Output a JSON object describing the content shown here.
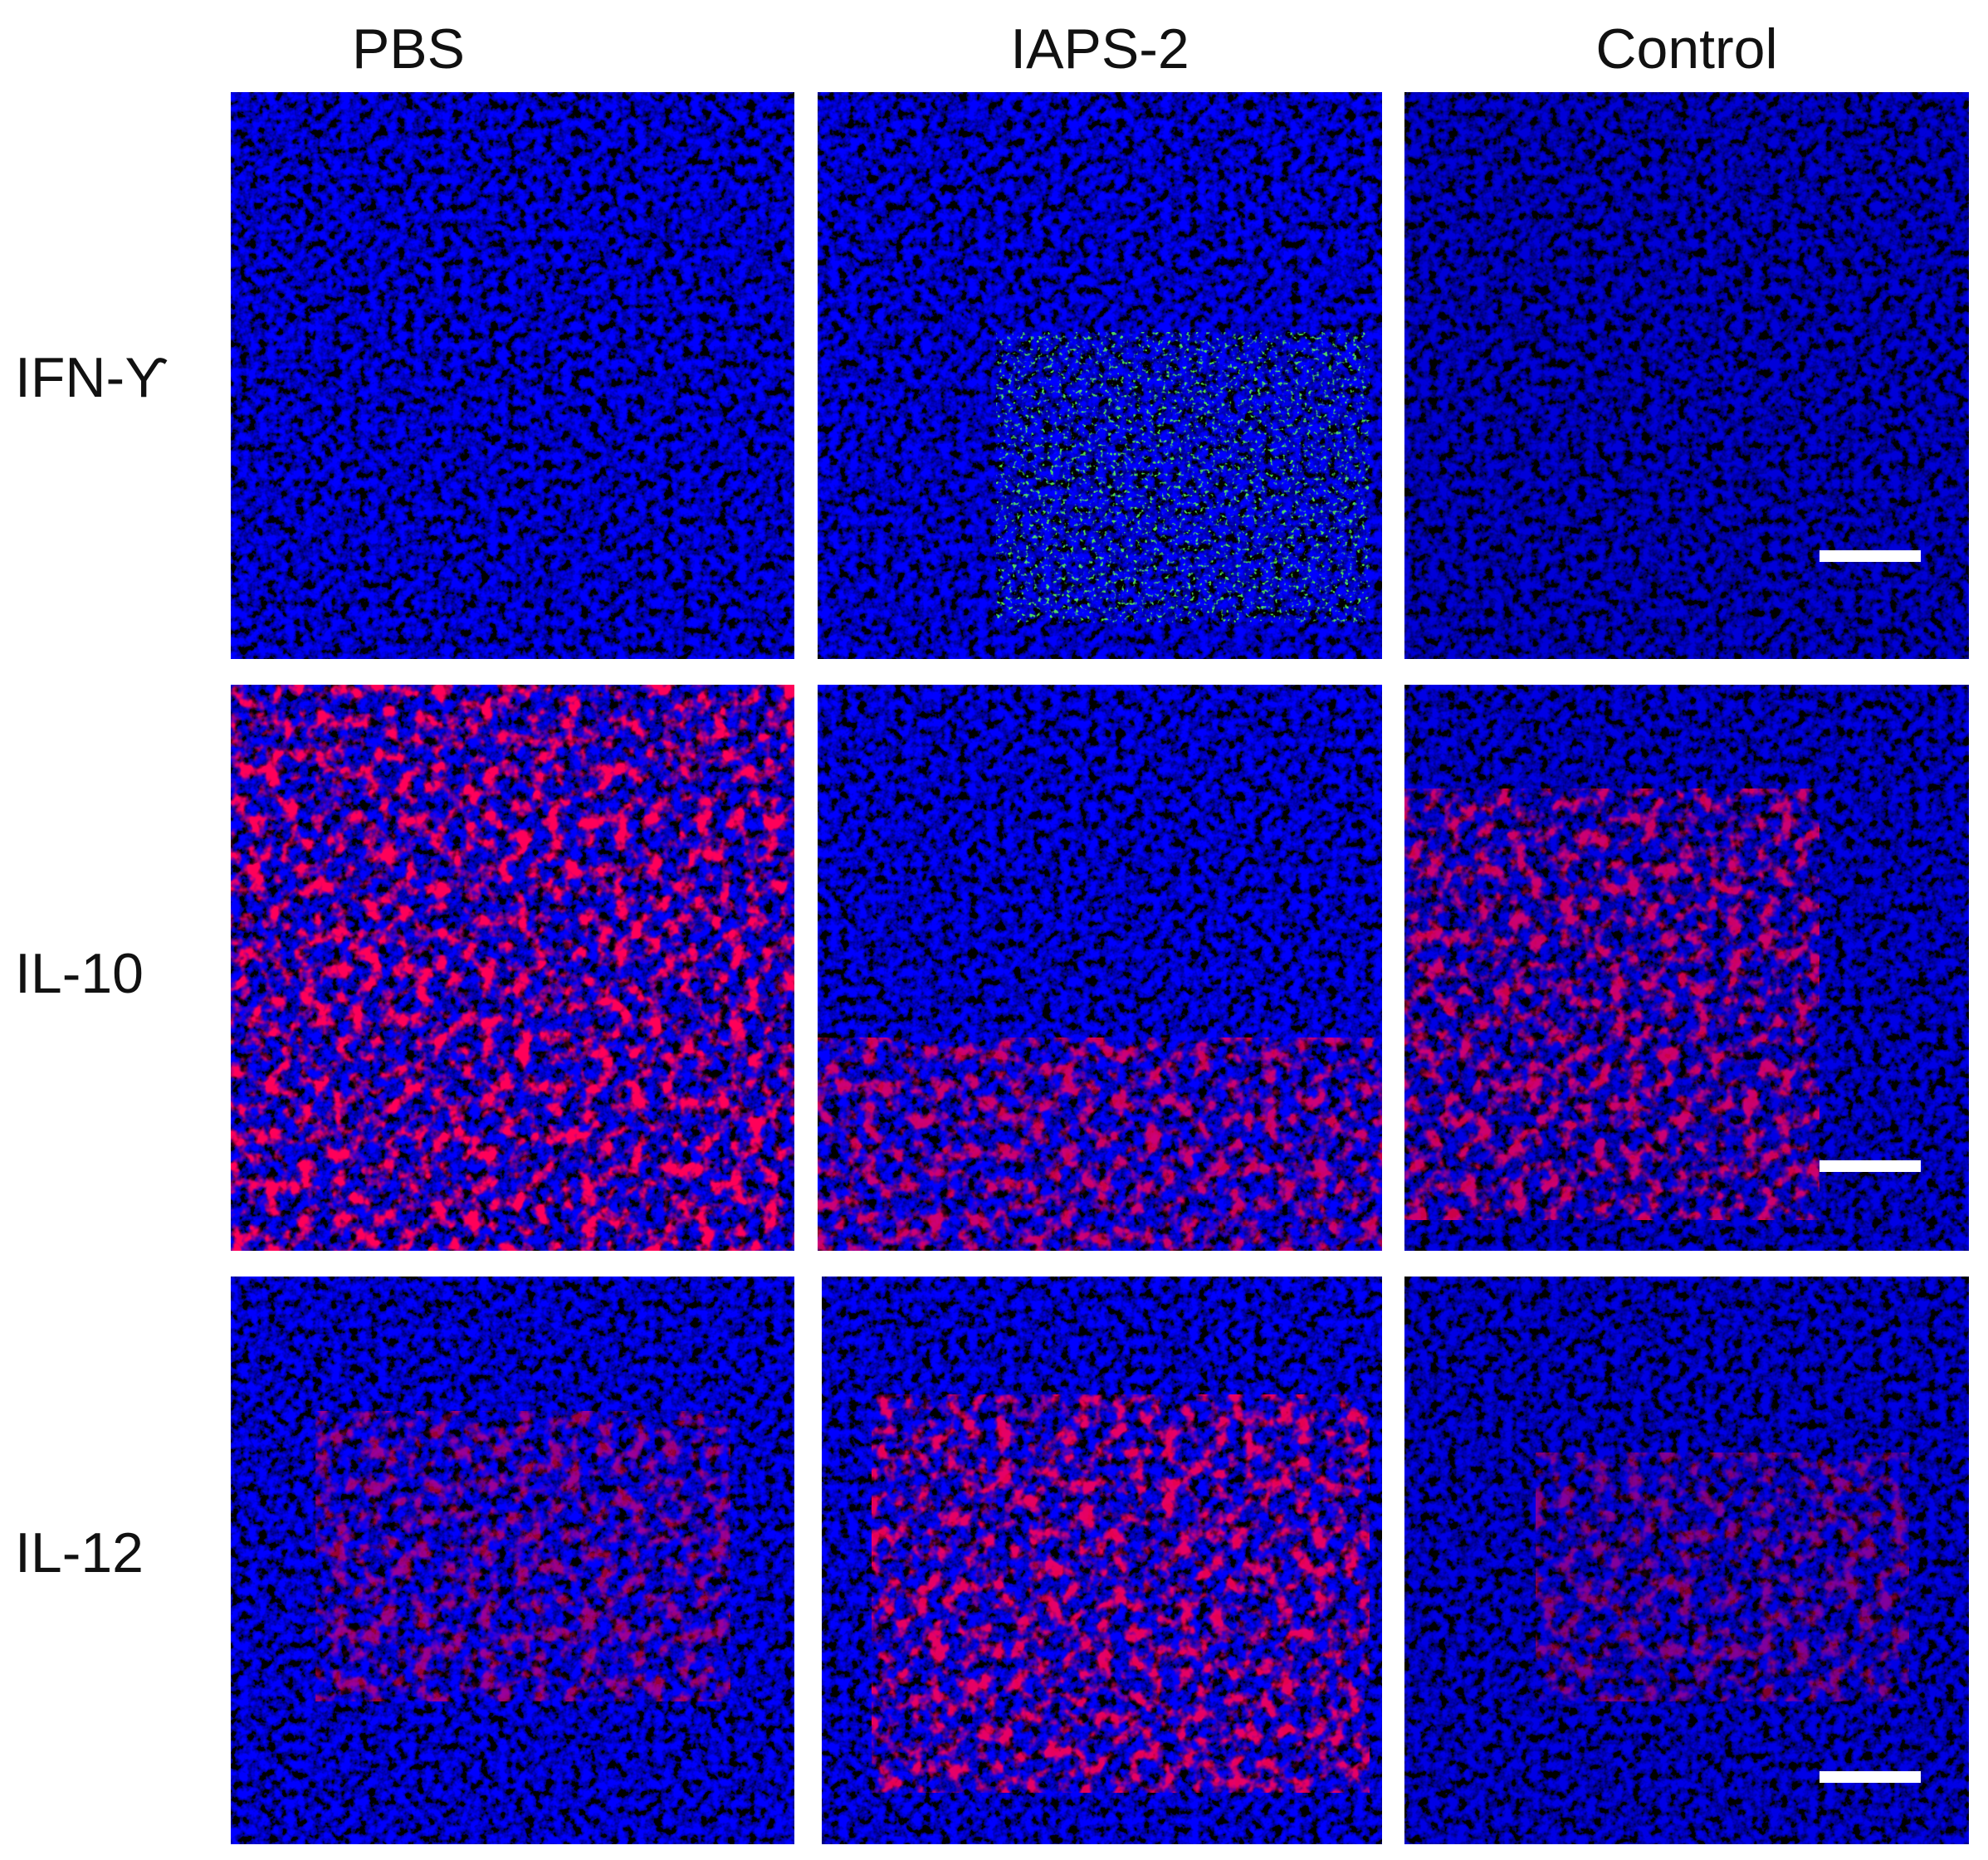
{
  "columns": [
    "PBS",
    "IAPS-2",
    "Control"
  ],
  "rows": [
    "IFN-ϒ",
    "IL-10",
    "IL-12"
  ]
}
